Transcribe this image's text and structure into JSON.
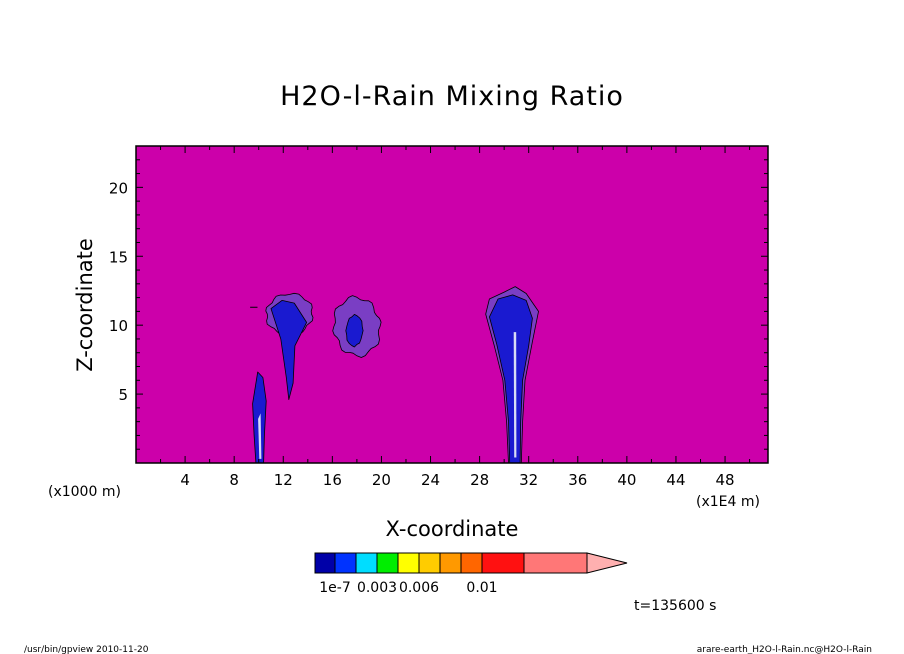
{
  "chart_data": {
    "type": "heatmap",
    "title": "H2O-l-Rain Mixing Ratio",
    "xlabel": "X-coordinate",
    "ylabel": "Z-coordinate",
    "x_unit_left": "(x1000 m)",
    "x_unit_right": "(x1E4 m)",
    "xlim": [
      0,
      51.5
    ],
    "ylim": [
      0,
      23
    ],
    "x_ticks": [
      4,
      8,
      12,
      16,
      20,
      24,
      28,
      32,
      36,
      40,
      44,
      48
    ],
    "y_ticks": [
      5,
      10,
      15,
      20
    ],
    "background_level": "below 1e-7",
    "colors": {
      "background": "#cc00aa",
      "outline": "#000000",
      "purple": "#7a3ec4",
      "blue": "#1a1ad0",
      "light": "#d8dcf6"
    },
    "features": [
      {
        "name": "column-x10",
        "x": [
          9.5,
          10.7
        ],
        "z": [
          0,
          6.6
        ],
        "level": "1e-7 to 0.003"
      },
      {
        "name": "anvil-x12",
        "x": [
          10.5,
          14.5
        ],
        "z": [
          4.6,
          12.3
        ],
        "level": "1e-7 to 0.003"
      },
      {
        "name": "cell-x18",
        "x": [
          16,
          20
        ],
        "z": [
          7.9,
          11.9
        ],
        "level": "below 1e-7 to 1e-7"
      },
      {
        "name": "column-x31",
        "x": [
          28.5,
          32.8
        ],
        "z": [
          0,
          12.8
        ],
        "level": "1e-7 to 0.003"
      }
    ],
    "colorbar": {
      "colors": [
        "#0000a8",
        "#0033ff",
        "#00ddff",
        "#00ee00",
        "#ffff00",
        "#ffcc00",
        "#ff9900",
        "#ff6600",
        "#ff1111",
        "#ff7777"
      ],
      "arrow_color": "#ffb0b0",
      "labels": [
        "1e-7",
        "0.003",
        "0.006",
        "0.01"
      ],
      "label_boxes": [
        1,
        3,
        5,
        8
      ]
    },
    "time_label": "t=135600 s"
  },
  "footer": {
    "left": "/usr/bin/gpview   2010-11-20",
    "right": "arare-earth_H2O-l-Rain.nc@H2O-l-Rain"
  }
}
